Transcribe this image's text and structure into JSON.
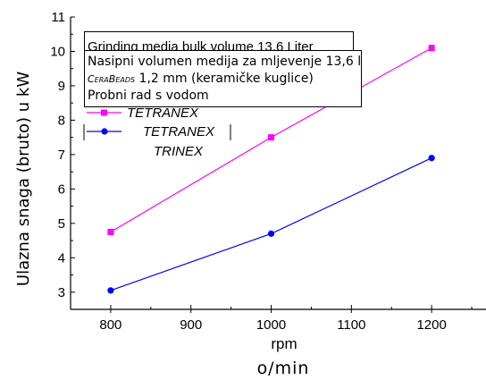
{
  "chart_data": {
    "type": "line",
    "categories": [
      800,
      1000,
      1200
    ],
    "x": [
      800,
      1000,
      1200
    ],
    "series": [
      {
        "name": "TETRANEX",
        "values": [
          4.75,
          7.5,
          10.1
        ],
        "color": "#ff00ff",
        "marker": "square"
      },
      {
        "name": "TETRANEX",
        "values": [
          3.05,
          4.7,
          6.9
        ],
        "color": "#0000ff",
        "marker": "circle"
      }
    ],
    "xlim": [
      750,
      1270
    ],
    "ylim": [
      2.5,
      11
    ],
    "xticks": [
      800,
      900,
      1000,
      1100,
      1200
    ],
    "yticks": [
      3,
      4,
      5,
      6,
      7,
      8,
      9,
      10,
      11
    ],
    "xlabel": "rpm",
    "xlabel_unit": "o/min",
    "ylabel": "Ulazna snaga (bruto) u kW",
    "grid": false,
    "legend_position": "top-left",
    "legend_extra_entry": "TRINEX"
  },
  "heading_hidden": "Grinding media bulk volume 13.6 Liter",
  "note": {
    "line1": "Nasipni volumen medija za mljevenje 13,6 l",
    "line2_brand": "CeraBeads",
    "line2_rest": " 1,2 mm (keramičke kuglice)",
    "line3": "Probni rad s vodom"
  }
}
